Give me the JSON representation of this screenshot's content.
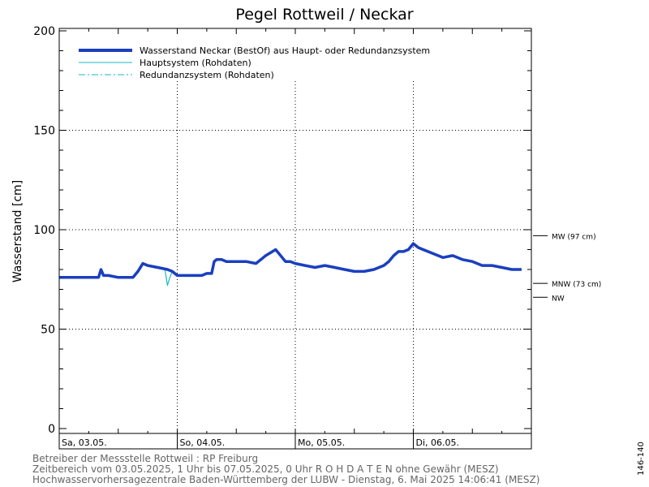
{
  "chart_data": {
    "type": "line",
    "title": "Pegel Rottweil / Neckar",
    "ylabel": "Wasserstand [cm]",
    "xlabel": "",
    "ylim": [
      0,
      200
    ],
    "y_ticks": [
      0,
      50,
      100,
      150,
      200
    ],
    "y_grid": [
      50,
      100,
      150
    ],
    "x_range_hours": [
      0,
      96
    ],
    "day_labels": [
      "Sa, 03.05.",
      "So, 04.05.",
      "Mo, 05.05.",
      "Di, 06.05."
    ],
    "grid": "dotted",
    "legend_position": "top-left",
    "legend": [
      {
        "label": "Wasserstand Neckar  (BestOf)  aus Haupt- oder Redundanzsystem",
        "style": "thick-solid",
        "color": "#1a3fbf"
      },
      {
        "label": "Hauptsystem (Rohdaten)",
        "style": "thin-solid",
        "color": "#18b8c8"
      },
      {
        "label": "Redundanzsystem (Rohdaten)",
        "style": "dash-dot",
        "color": "#18b8c8"
      }
    ],
    "reference_levels": [
      {
        "label": "MW (97 cm)",
        "value": 97
      },
      {
        "label": "MNW (73 cm)",
        "value": 73
      },
      {
        "label": "NW",
        "value": 66
      }
    ],
    "series": [
      {
        "name": "Wasserstand Neckar  (BestOf)  aus Haupt- oder Redundanzsystem",
        "color": "#1a3fbf",
        "x": [
          0,
          1,
          2,
          4,
          6,
          7,
          8,
          8.5,
          9,
          10,
          12,
          14,
          15,
          16,
          17,
          18,
          20,
          22,
          23,
          24,
          26,
          28,
          29,
          30,
          31,
          31.5,
          32,
          33,
          34,
          36,
          38,
          40,
          41,
          41.5,
          42,
          44,
          46,
          47,
          48,
          50,
          52,
          54,
          56,
          58,
          60,
          62,
          64,
          66,
          67,
          68,
          69,
          70,
          71,
          72,
          73,
          74,
          76,
          78,
          80,
          82,
          84,
          86,
          88,
          90,
          92,
          94
        ],
        "values": [
          76,
          76,
          76,
          76,
          76,
          76,
          76,
          80,
          77,
          77,
          76,
          76,
          76,
          79,
          83,
          82,
          81,
          80,
          79,
          77,
          77,
          77,
          77,
          78,
          78,
          84,
          85,
          85,
          84,
          84,
          84,
          83,
          85,
          86,
          87,
          90,
          84,
          84,
          83,
          82,
          81,
          82,
          81,
          80,
          79,
          79,
          80,
          82,
          84,
          87,
          89,
          89,
          90,
          93,
          91,
          90,
          88,
          86,
          87,
          85,
          84,
          82,
          82,
          81,
          80,
          80
        ]
      },
      {
        "name": "Hauptsystem (Rohdaten)",
        "color": "#18b8c8",
        "x": [
          0,
          1,
          2,
          4,
          6,
          7,
          8,
          8.5,
          9,
          10,
          12,
          14,
          15,
          16,
          17,
          18,
          20,
          21.5,
          22,
          22.5,
          23,
          24,
          26,
          28,
          29,
          30,
          31,
          31.5,
          32,
          33,
          34,
          36,
          38,
          40,
          41,
          41.5,
          42,
          44,
          46,
          47,
          48,
          50,
          52,
          54,
          56,
          58,
          60,
          62,
          64,
          66,
          67,
          68,
          69,
          70,
          71,
          72,
          73,
          74,
          76,
          78,
          80,
          82,
          84,
          86,
          88,
          90,
          92,
          94
        ],
        "values": [
          76,
          76,
          76,
          76,
          76,
          76,
          76,
          80,
          77,
          77,
          76,
          76,
          76,
          79,
          83,
          82,
          81,
          80,
          72,
          76,
          79,
          77,
          77,
          77,
          77,
          78,
          78,
          84,
          85,
          85,
          84,
          84,
          84,
          83,
          85,
          86,
          87,
          90,
          84,
          84,
          83,
          82,
          81,
          82,
          81,
          80,
          79,
          79,
          80,
          82,
          84,
          87,
          89,
          89,
          90,
          93,
          91,
          90,
          88,
          86,
          87,
          85,
          84,
          82,
          82,
          81,
          80,
          80
        ]
      }
    ]
  },
  "footer": {
    "line1": "Betreiber der Messstelle Rottweil : RP Freiburg",
    "line2": "Zeitbereich vom 03.05.2025, 1 Uhr bis 07.05.2025, 0 Uhr    R O H D A T E N  ohne Gewähr (MESZ)",
    "line3": "Hochwasservorhersagezentrale Baden-Württemberg der LUBW - Dienstag, 6. Mai 2025 14:06:41 (MESZ)"
  },
  "side_code": "146-140"
}
